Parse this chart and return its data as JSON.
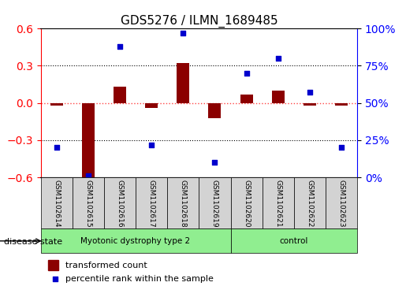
{
  "title": "GDS5276 / ILMN_1689485",
  "samples": [
    "GSM1102614",
    "GSM1102615",
    "GSM1102616",
    "GSM1102617",
    "GSM1102618",
    "GSM1102619",
    "GSM1102620",
    "GSM1102621",
    "GSM1102622",
    "GSM1102623"
  ],
  "transformed_count": [
    -0.02,
    -0.6,
    0.13,
    -0.04,
    0.32,
    -0.12,
    0.07,
    0.1,
    -0.02,
    -0.02
  ],
  "percentile_rank": [
    20,
    1,
    88,
    22,
    97,
    10,
    70,
    80,
    57,
    20
  ],
  "disease_groups": [
    {
      "label": "Myotonic dystrophy type 2",
      "start": 0,
      "end": 6,
      "color": "#90EE90"
    },
    {
      "label": "control",
      "start": 6,
      "end": 10,
      "color": "#90EE90"
    }
  ],
  "ylim_left": [
    -0.6,
    0.6
  ],
  "ylim_right": [
    0,
    100
  ],
  "yticks_left": [
    -0.6,
    -0.3,
    0.0,
    0.3,
    0.6
  ],
  "yticks_right": [
    0,
    25,
    50,
    75,
    100
  ],
  "ytick_labels_right": [
    "0%",
    "25%",
    "50%",
    "75%",
    "100%"
  ],
  "bar_color": "#8B0000",
  "scatter_color": "#0000CD",
  "zero_line_color": "#FF4444",
  "grid_color": "#000000",
  "bg_color": "#FFFFFF",
  "label_bg_color": "#D3D3D3",
  "disease_state_label": "disease state",
  "legend_bar_label": "transformed count",
  "legend_scatter_label": "percentile rank within the sample"
}
